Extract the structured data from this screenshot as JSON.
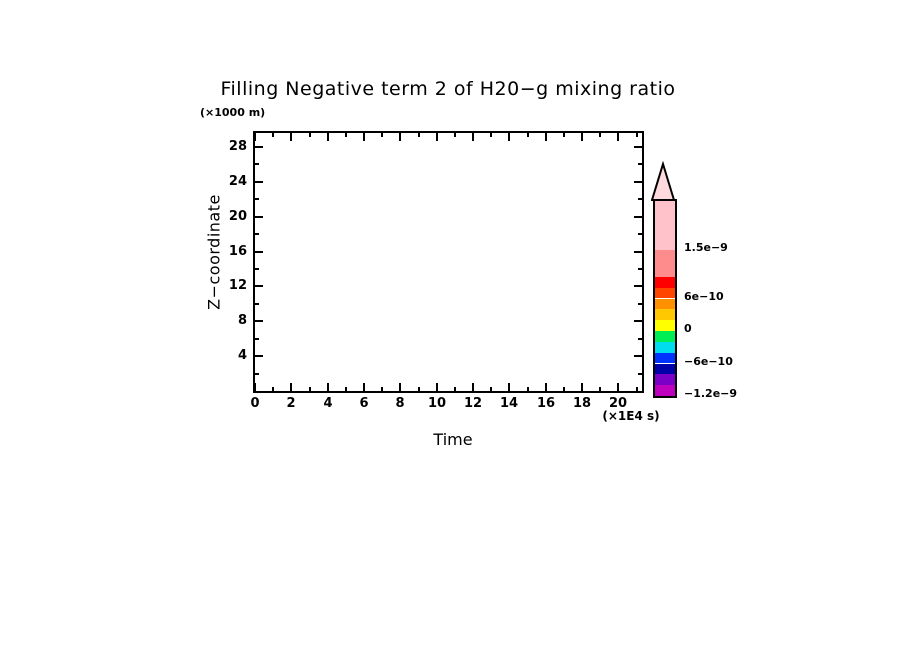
{
  "window": {
    "background": "#FFFFFF",
    "frame_color": "#000000",
    "text_color": "#000000"
  },
  "chart_data": {
    "type": "heatmap",
    "title": "Filling Negative term 2 of H20−g mixing ratio",
    "xlabel": "Time",
    "x_unit": "(×1E4 s)",
    "ylabel": "Z−coordinate",
    "y_unit": "(×1000 m)",
    "xlim": [
      0,
      21.3
    ],
    "ylim": [
      0,
      29.6
    ],
    "x_ticks_major": [
      0,
      2,
      4,
      6,
      8,
      10,
      12,
      14,
      16,
      18,
      20
    ],
    "x_ticks_minor": [
      1,
      3,
      5,
      7,
      9,
      11,
      13,
      15,
      17,
      19,
      21
    ],
    "y_ticks_major": [
      4,
      8,
      12,
      16,
      20,
      24,
      28
    ],
    "y_ticks_minor": [
      2,
      6,
      10,
      14,
      18,
      22,
      26
    ],
    "grid": false,
    "values": [],
    "plot_area_note": "plot area is blank / no contour data drawn",
    "colorbar": {
      "position": "right",
      "vmin": -1.2e-09,
      "vmax": 2.4e-09,
      "arrow_color": "#FFD9DE",
      "segments": [
        {
          "from": 1.5e-09,
          "to": 2.4e-09,
          "color": "#FFC2CB"
        },
        {
          "from": 1e-09,
          "to": 1.5e-09,
          "color": "#FF8C8C"
        },
        {
          "from": 8e-10,
          "to": 1e-09,
          "color": "#FF0000"
        },
        {
          "from": 6e-10,
          "to": 8e-10,
          "color": "#FF4500"
        },
        {
          "from": 4e-10,
          "to": 6e-10,
          "color": "#FF9000"
        },
        {
          "from": 2e-10,
          "to": 4e-10,
          "color": "#FFC800"
        },
        {
          "from": 0,
          "to": 2e-10,
          "color": "#FFFF00"
        },
        {
          "from": -2e-10,
          "to": 0,
          "color": "#00EE55"
        },
        {
          "from": -4e-10,
          "to": -2e-10,
          "color": "#00DDEE"
        },
        {
          "from": -6e-10,
          "to": -4e-10,
          "color": "#0033FF"
        },
        {
          "from": -8e-10,
          "to": -6e-10,
          "color": "#0000AA"
        },
        {
          "from": -1e-09,
          "to": -8e-10,
          "color": "#7A00C8"
        },
        {
          "from": -1.2e-09,
          "to": -1e-09,
          "color": "#BE00BE"
        }
      ],
      "labels": [
        {
          "value": 1.5e-09,
          "text": "1.5e−9"
        },
        {
          "value": 6e-10,
          "text": "6e−10"
        },
        {
          "value": 0,
          "text": "0"
        },
        {
          "value": -6e-10,
          "text": "−6e−10"
        },
        {
          "value": -1.2e-09,
          "text": "−1.2e−9"
        }
      ]
    }
  }
}
